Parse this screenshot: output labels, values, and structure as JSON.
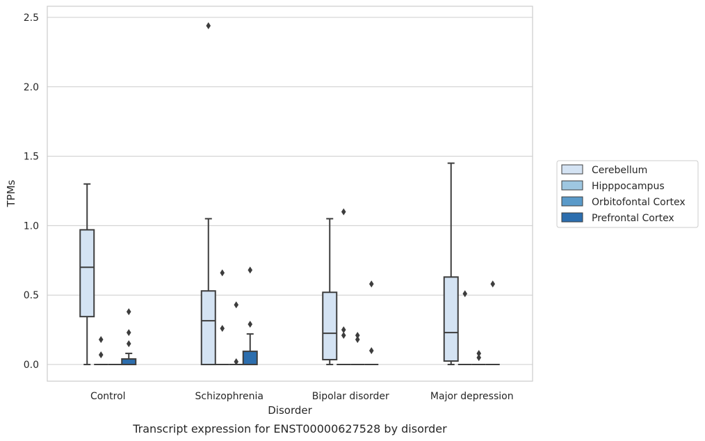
{
  "chart_data": {
    "type": "boxplot",
    "xlabel": "Disorder",
    "ylabel": "TPMs",
    "caption": "Transcript expression for ENST00000627528 by disorder",
    "ylim": [
      -0.12,
      2.58
    ],
    "yticks": [
      0.0,
      0.5,
      1.0,
      1.5,
      2.0,
      2.5
    ],
    "ytick_labels": [
      "0.0",
      "0.5",
      "1.0",
      "1.5",
      "2.0",
      "2.5"
    ],
    "grid": true,
    "legend_position": "right",
    "categories": [
      "Control",
      "Schizophrenia",
      "Bipolar disorder",
      "Major depression"
    ],
    "series": [
      {
        "name": "Cerebellum",
        "color": "#d4e3f3",
        "boxes": [
          {
            "whislo": 0.0,
            "q1": 0.345,
            "med": 0.7,
            "q3": 0.97,
            "whishi": 1.3,
            "fliers": []
          },
          {
            "whislo": 0.0,
            "q1": 0.0,
            "med": 0.315,
            "q3": 0.53,
            "whishi": 1.05,
            "fliers": [
              2.44
            ]
          },
          {
            "whislo": 0.0,
            "q1": 0.035,
            "med": 0.225,
            "q3": 0.52,
            "whishi": 1.05,
            "fliers": []
          },
          {
            "whislo": 0.0,
            "q1": 0.025,
            "med": 0.23,
            "q3": 0.63,
            "whishi": 1.45,
            "fliers": []
          }
        ]
      },
      {
        "name": "Hipppocampus",
        "color": "#9ec7e1",
        "boxes": [
          {
            "whislo": 0.0,
            "q1": 0.0,
            "med": 0.0,
            "q3": 0.0,
            "whishi": 0.0,
            "fliers": [
              0.07,
              0.18
            ]
          },
          {
            "whislo": 0.0,
            "q1": 0.0,
            "med": 0.0,
            "q3": 0.0,
            "whishi": 0.0,
            "fliers": [
              0.26,
              0.66
            ]
          },
          {
            "whislo": 0.0,
            "q1": 0.0,
            "med": 0.0,
            "q3": 0.0,
            "whishi": 0.0,
            "fliers": [
              0.21,
              0.25,
              1.1
            ]
          },
          {
            "whislo": 0.0,
            "q1": 0.0,
            "med": 0.0,
            "q3": 0.0,
            "whishi": 0.0,
            "fliers": [
              0.51
            ]
          }
        ]
      },
      {
        "name": "Orbitofontal Cortex",
        "color": "#5a9ac9",
        "boxes": [
          {
            "whislo": 0.0,
            "q1": 0.0,
            "med": 0.0,
            "q3": 0.0,
            "whishi": 0.0,
            "fliers": []
          },
          {
            "whislo": 0.0,
            "q1": 0.0,
            "med": 0.0,
            "q3": 0.0,
            "whishi": 0.0,
            "fliers": [
              0.02,
              0.43
            ]
          },
          {
            "whislo": 0.0,
            "q1": 0.0,
            "med": 0.0,
            "q3": 0.0,
            "whishi": 0.0,
            "fliers": [
              0.18,
              0.21
            ]
          },
          {
            "whislo": 0.0,
            "q1": 0.0,
            "med": 0.0,
            "q3": 0.0,
            "whishi": 0.0,
            "fliers": [
              0.05,
              0.08
            ]
          }
        ]
      },
      {
        "name": "Prefrontal Cortex",
        "color": "#2c6eae",
        "boxes": [
          {
            "whislo": 0.0,
            "q1": 0.0,
            "med": 0.0,
            "q3": 0.04,
            "whishi": 0.08,
            "fliers": [
              0.15,
              0.23,
              0.38
            ]
          },
          {
            "whislo": 0.0,
            "q1": 0.0,
            "med": 0.0,
            "q3": 0.095,
            "whishi": 0.22,
            "fliers": [
              0.29,
              0.68
            ]
          },
          {
            "whislo": 0.0,
            "q1": 0.0,
            "med": 0.0,
            "q3": 0.0,
            "whishi": 0.0,
            "fliers": [
              0.1,
              0.58
            ]
          },
          {
            "whislo": 0.0,
            "q1": 0.0,
            "med": 0.0,
            "q3": 0.0,
            "whishi": 0.0,
            "fliers": [
              0.58
            ]
          }
        ]
      }
    ]
  }
}
